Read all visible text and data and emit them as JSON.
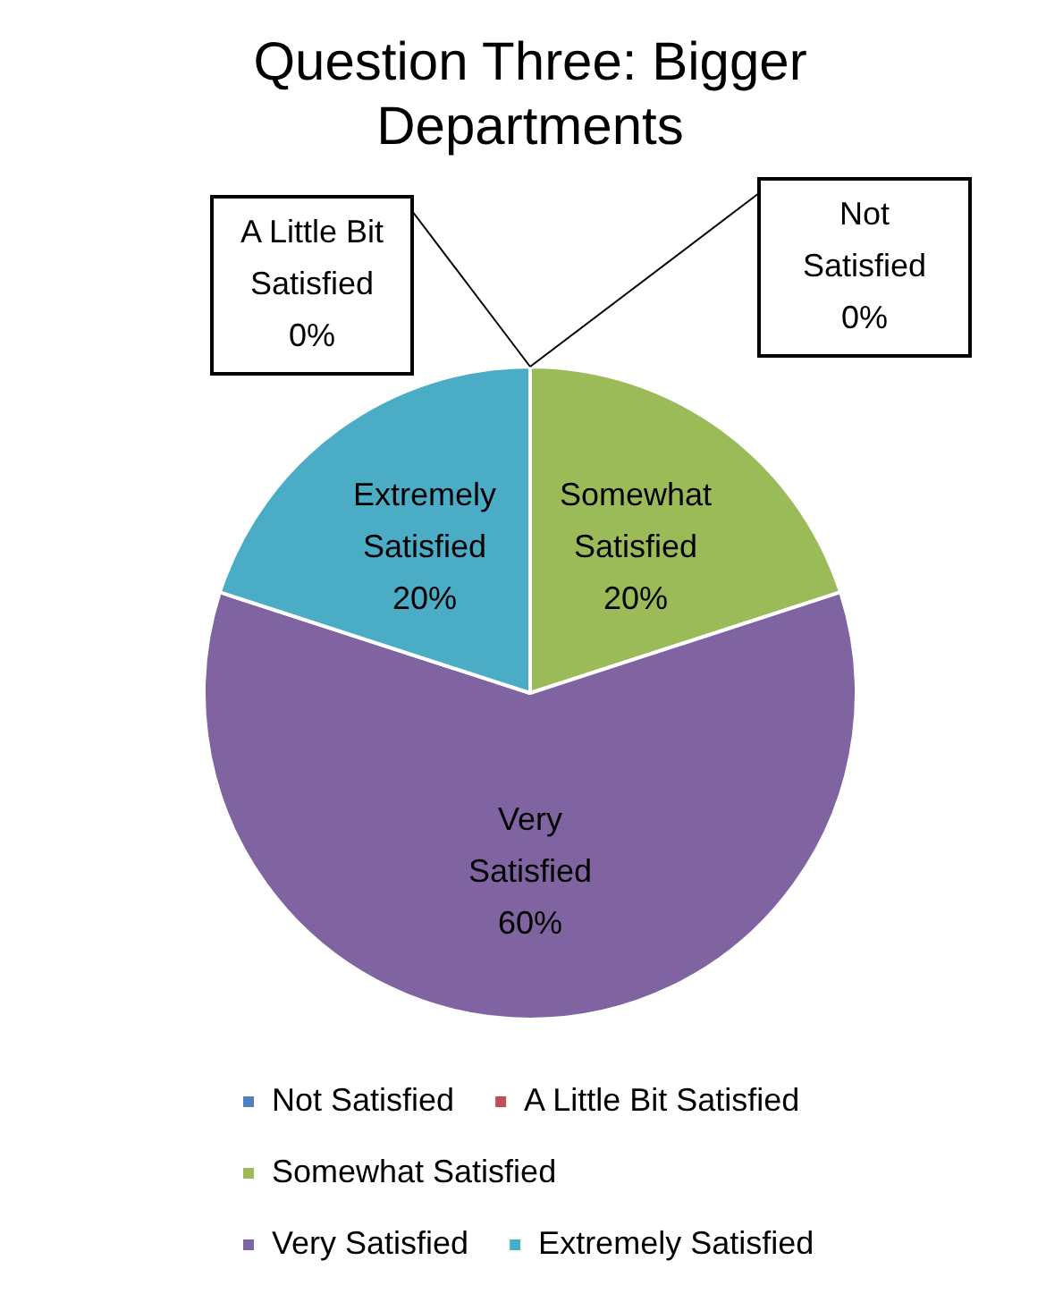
{
  "chart_data": {
    "type": "pie",
    "title": "Question Three: Bigger Departments",
    "categories": [
      "Not Satisfied",
      "A Little Bit Satisfied",
      "Somewhat Satisfied",
      "Very Satisfied",
      "Extremely Satisfied"
    ],
    "values": [
      0,
      0,
      20,
      60,
      20
    ],
    "colors": [
      "#4f81bd",
      "#c0504d",
      "#9bbb59",
      "#8064a2",
      "#4bacc6"
    ],
    "value_labels": [
      "0%",
      "0%",
      "20%",
      "60%",
      "20%"
    ],
    "legend": "bottom"
  }
}
